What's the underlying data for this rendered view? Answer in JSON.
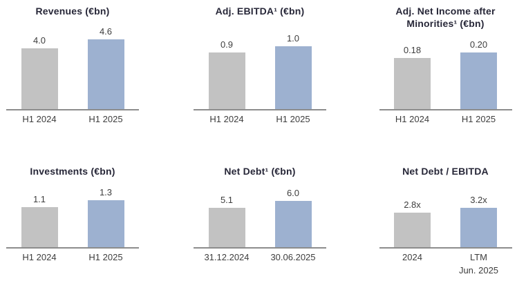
{
  "colors": {
    "bar_prior": "#c2c2c2",
    "bar_current": "#9db1d0",
    "axis": "#8c8c8c",
    "title_text": "#272738",
    "label_text": "#3d3d3d"
  },
  "chart_data": [
    {
      "type": "bar",
      "title": "Revenues (€bn)",
      "categories": [
        "H1 2024",
        "H1 2025"
      ],
      "values": [
        4.0,
        4.6
      ],
      "value_labels": [
        "4.0",
        "4.6"
      ],
      "xlabel": "",
      "ylabel": "",
      "grid": false,
      "legend": "none"
    },
    {
      "type": "bar",
      "title": "Adj. EBITDA¹ (€bn)",
      "categories": [
        "H1 2024",
        "H1 2025"
      ],
      "values": [
        0.9,
        1.0
      ],
      "value_labels": [
        "0.9",
        "1.0"
      ],
      "xlabel": "",
      "ylabel": "",
      "grid": false,
      "legend": "none"
    },
    {
      "type": "bar",
      "title": "Adj. Net Income after\nMinorities¹ (€bn)",
      "categories": [
        "H1 2024",
        "H1 2025"
      ],
      "values": [
        0.18,
        0.2
      ],
      "value_labels": [
        "0.18",
        "0.20"
      ],
      "xlabel": "",
      "ylabel": "",
      "grid": false,
      "legend": "none"
    },
    {
      "type": "bar",
      "title": "Investments (€bn)",
      "categories": [
        "H1 2024",
        "H1 2025"
      ],
      "values": [
        1.1,
        1.3
      ],
      "value_labels": [
        "1.1",
        "1.3"
      ],
      "xlabel": "",
      "ylabel": "",
      "grid": false,
      "legend": "none"
    },
    {
      "type": "bar",
      "title": "Net Debt¹ (€bn)",
      "categories": [
        "31.12.2024",
        "30.06.2025"
      ],
      "values": [
        5.1,
        6.0
      ],
      "value_labels": [
        "5.1",
        "6.0"
      ],
      "xlabel": "",
      "ylabel": "",
      "grid": false,
      "legend": "none"
    },
    {
      "type": "bar",
      "title": "Net Debt / EBITDA",
      "categories": [
        "2024",
        "LTM\nJun. 2025"
      ],
      "values": [
        2.8,
        3.2
      ],
      "value_labels": [
        "2.8x",
        "3.2x"
      ],
      "xlabel": "",
      "ylabel": "",
      "grid": false,
      "legend": "none"
    }
  ]
}
